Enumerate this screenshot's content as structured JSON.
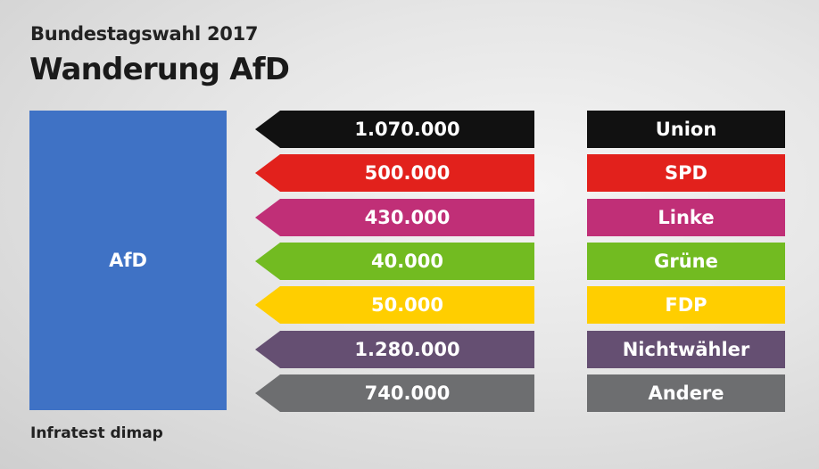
{
  "header": {
    "subtitle": "Bundestagswahl 2017",
    "title": "Wanderung AfD"
  },
  "footer": {
    "source": "Infratest dimap"
  },
  "target": {
    "label": "AfD",
    "color": "#3f72c5"
  },
  "chart_data": {
    "type": "bar",
    "title": "Wanderung AfD",
    "subtitle": "Bundestagswahl 2017",
    "source": "Infratest dimap",
    "target": "AfD",
    "rows": [
      {
        "party": "Union",
        "value": 1070000,
        "value_label": "1.070.000",
        "color": "#111111"
      },
      {
        "party": "SPD",
        "value": 500000,
        "value_label": "500.000",
        "color": "#e2211c"
      },
      {
        "party": "Linke",
        "value": 430000,
        "value_label": "430.000",
        "color": "#c02f77"
      },
      {
        "party": "Grüne",
        "value": 40000,
        "value_label": "40.000",
        "color": "#72bb21"
      },
      {
        "party": "FDP",
        "value": 50000,
        "value_label": "50.000",
        "color": "#ffce00"
      },
      {
        "party": "Nichtwähler",
        "value": 1280000,
        "value_label": "1.280.000",
        "color": "#654f72"
      },
      {
        "party": "Andere",
        "value": 740000,
        "value_label": "740.000",
        "color": "#6d6e70"
      }
    ]
  }
}
